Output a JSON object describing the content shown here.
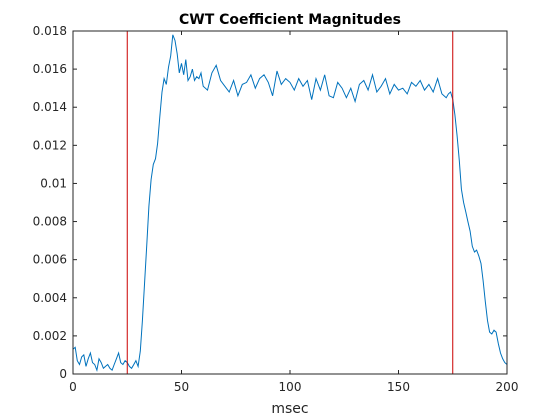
{
  "chart_data": {
    "type": "line",
    "title": "CWT Coefficient Magnitudes",
    "xlabel": "msec",
    "ylabel": "",
    "xlim": [
      0,
      200
    ],
    "ylim": [
      0,
      0.018
    ],
    "x_ticks": [
      0,
      50,
      100,
      150,
      200
    ],
    "x_tick_labels": [
      "0",
      "50",
      "100",
      "150",
      "200"
    ],
    "y_ticks": [
      0,
      0.002,
      0.004,
      0.006,
      0.008,
      0.01,
      0.012,
      0.014,
      0.016,
      0.018
    ],
    "y_tick_labels": [
      "0",
      "0.002",
      "0.004",
      "0.006",
      "0.008",
      "0.01",
      "0.012",
      "0.014",
      "0.016",
      "0.018"
    ],
    "grid": false,
    "series": [
      {
        "color": "#0072BD",
        "x": [
          0,
          1,
          2,
          3,
          4,
          5,
          6,
          7,
          8,
          9,
          10,
          11,
          12,
          13,
          14,
          15,
          16,
          17,
          18,
          19,
          20,
          21,
          22,
          23,
          24,
          25,
          26,
          27,
          28,
          29,
          30,
          31,
          32,
          33,
          34,
          35,
          36,
          37,
          38,
          39,
          40,
          41,
          42,
          43,
          44,
          45,
          46,
          47,
          48,
          49,
          50,
          51,
          52,
          53,
          54,
          55,
          56,
          57,
          58,
          59,
          60,
          62,
          64,
          66,
          68,
          70,
          72,
          74,
          76,
          78,
          80,
          82,
          84,
          86,
          88,
          90,
          92,
          94,
          96,
          98,
          100,
          102,
          104,
          106,
          108,
          110,
          112,
          114,
          116,
          118,
          120,
          122,
          124,
          126,
          128,
          130,
          132,
          134,
          136,
          138,
          140,
          142,
          144,
          146,
          148,
          150,
          152,
          154,
          156,
          158,
          160,
          162,
          164,
          166,
          168,
          170,
          172,
          173,
          174,
          175,
          176,
          177,
          178,
          179,
          180,
          181,
          182,
          183,
          184,
          185,
          186,
          187,
          188,
          189,
          190,
          191,
          192,
          193,
          194,
          195,
          196,
          197,
          198,
          199,
          200
        ],
        "values": [
          0.0013,
          0.0014,
          0.0007,
          0.0005,
          0.0009,
          0.001,
          0.0004,
          0.0008,
          0.0011,
          0.0006,
          0.0005,
          0.0002,
          0.0008,
          0.0006,
          0.0003,
          0.0004,
          0.0005,
          0.0003,
          0.0002,
          0.0005,
          0.0008,
          0.0011,
          0.0006,
          0.0005,
          0.0007,
          0.0006,
          0.0004,
          0.0003,
          0.0005,
          0.0007,
          0.0004,
          0.0012,
          0.0028,
          0.0048,
          0.0068,
          0.0088,
          0.0102,
          0.011,
          0.0113,
          0.0121,
          0.0135,
          0.0148,
          0.0155,
          0.0152,
          0.0161,
          0.0167,
          0.0178,
          0.0175,
          0.0168,
          0.0158,
          0.0163,
          0.0157,
          0.0165,
          0.0154,
          0.0156,
          0.016,
          0.0154,
          0.0156,
          0.0155,
          0.0158,
          0.0151,
          0.0149,
          0.0158,
          0.0162,
          0.0154,
          0.0151,
          0.0148,
          0.0154,
          0.0146,
          0.0152,
          0.0153,
          0.0157,
          0.015,
          0.0155,
          0.0157,
          0.0153,
          0.0146,
          0.0159,
          0.0152,
          0.0155,
          0.0153,
          0.0149,
          0.0155,
          0.0151,
          0.0154,
          0.0144,
          0.0155,
          0.0149,
          0.0157,
          0.0146,
          0.0145,
          0.0153,
          0.015,
          0.0145,
          0.015,
          0.0143,
          0.0152,
          0.0154,
          0.0149,
          0.0157,
          0.0148,
          0.0151,
          0.0155,
          0.0147,
          0.0152,
          0.0149,
          0.015,
          0.0147,
          0.0153,
          0.0151,
          0.0154,
          0.0149,
          0.0152,
          0.0148,
          0.0155,
          0.0147,
          0.0145,
          0.0147,
          0.0148,
          0.0144,
          0.0136,
          0.0125,
          0.0112,
          0.0097,
          0.009,
          0.0085,
          0.008,
          0.0075,
          0.0067,
          0.0064,
          0.0065,
          0.0062,
          0.0058,
          0.0049,
          0.0038,
          0.0028,
          0.0022,
          0.0021,
          0.0023,
          0.0022,
          0.0016,
          0.0011,
          0.0008,
          0.0006,
          0.0005
        ]
      }
    ],
    "vertical_markers": [
      {
        "x": 25,
        "color": "#CC0000"
      },
      {
        "x": 175,
        "color": "#CC0000"
      }
    ]
  }
}
